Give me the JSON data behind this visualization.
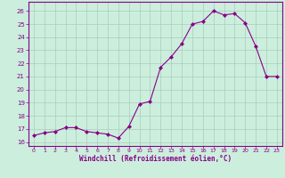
{
  "x": [
    0,
    1,
    2,
    3,
    4,
    5,
    6,
    7,
    8,
    9,
    10,
    11,
    12,
    13,
    14,
    15,
    16,
    17,
    18,
    19,
    20,
    21,
    22,
    23
  ],
  "y": [
    16.5,
    16.7,
    16.8,
    17.1,
    17.1,
    16.8,
    16.7,
    16.6,
    16.3,
    17.2,
    18.9,
    19.1,
    21.7,
    22.5,
    23.5,
    25.0,
    25.2,
    26.0,
    25.7,
    25.8,
    25.1,
    23.3,
    21.0,
    21.0
  ],
  "line_color": "#880088",
  "marker": "D",
  "marker_size": 2.0,
  "bg_color": "#cceedd",
  "grid_color": "#aaccbb",
  "xlabel": "Windchill (Refroidissement éolien,°C)",
  "xlabel_color": "#880088",
  "ylabel_ticks": [
    16,
    17,
    18,
    19,
    20,
    21,
    22,
    23,
    24,
    25,
    26
  ],
  "xlim": [
    -0.5,
    23.5
  ],
  "ylim": [
    15.7,
    26.7
  ],
  "tick_labels": [
    "0",
    "1",
    "2",
    "3",
    "4",
    "5",
    "6",
    "7",
    "8",
    "9",
    "10",
    "11",
    "12",
    "13",
    "14",
    "15",
    "16",
    "17",
    "18",
    "19",
    "20",
    "21",
    "22",
    "23"
  ]
}
